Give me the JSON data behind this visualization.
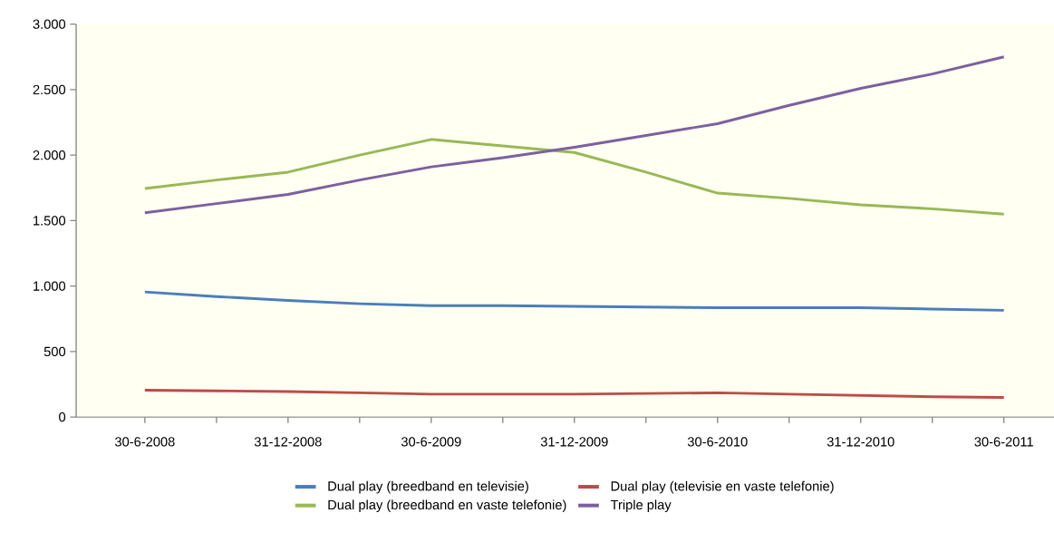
{
  "chart_data": {
    "type": "line",
    "categories": [
      "30-6-2008",
      null,
      "31-12-2008",
      null,
      "30-6-2009",
      null,
      "31-12-2009",
      null,
      "30-6-2010",
      null,
      "31-12-2010",
      null,
      "30-6-2011"
    ],
    "series": [
      {
        "name": "Dual play (breedband en televisie)",
        "color": "#4a7ebb",
        "values": [
          955,
          920,
          890,
          865,
          850,
          850,
          845,
          840,
          835,
          835,
          835,
          825,
          815
        ]
      },
      {
        "name": "Dual play (televisie en vaste telefonie)",
        "color": "#be4b48",
        "values": [
          205,
          200,
          195,
          185,
          175,
          175,
          175,
          180,
          185,
          175,
          165,
          155,
          150
        ]
      },
      {
        "name": "Dual play (breedband en vaste telefonie)",
        "color": "#98b954",
        "values": [
          1745,
          1810,
          1870,
          2000,
          2120,
          2070,
          2020,
          1870,
          1710,
          1670,
          1620,
          1590,
          1550
        ]
      },
      {
        "name": "Triple play",
        "color": "#7d60a0",
        "values": [
          1560,
          1630,
          1700,
          1810,
          1910,
          1980,
          2060,
          2150,
          2240,
          2380,
          2510,
          2620,
          2750
        ]
      }
    ],
    "ylim": [
      0,
      3000
    ],
    "yticks": [
      0,
      {
        "value": 500,
        "label": "500"
      },
      {
        "value": 1000,
        "label": "1.000"
      },
      {
        "value": 1500,
        "label": "1.500"
      },
      {
        "value": 2000,
        "label": "2.000"
      },
      {
        "value": 2500,
        "label": "2.500"
      },
      {
        "value": 3000,
        "label": "3.000"
      }
    ],
    "legend": "bottom"
  }
}
